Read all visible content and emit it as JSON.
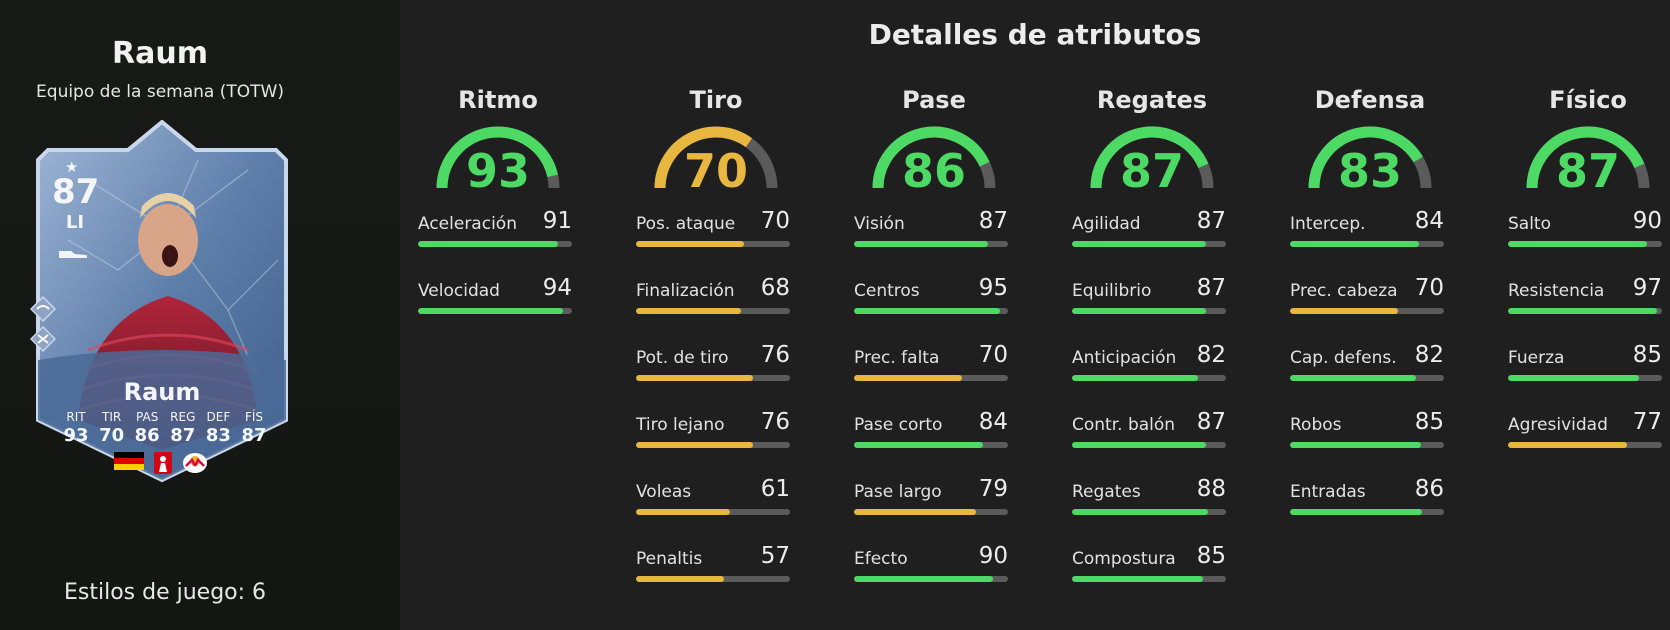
{
  "player": {
    "name": "Raum",
    "card_type": "Equipo de la semana (TOTW)",
    "playstyles_label": "Estilos de juego: 6"
  },
  "card": {
    "rating": "87",
    "position": "LI",
    "name": "Raum",
    "stats": [
      {
        "label": "RIT",
        "value": "93"
      },
      {
        "label": "TIR",
        "value": "70"
      },
      {
        "label": "PAS",
        "value": "86"
      },
      {
        "label": "REG",
        "value": "87"
      },
      {
        "label": "DEF",
        "value": "83"
      },
      {
        "label": "FÍS",
        "value": "87"
      }
    ],
    "flags": [
      "germany-flag",
      "bundesliga-badge",
      "rb-leipzig-badge"
    ]
  },
  "details": {
    "title": "Detalles de atributos",
    "colors": {
      "high": "#4cd964",
      "mid": "#e8b73f",
      "track": "#5b5b5b"
    },
    "categories": [
      {
        "name": "Ritmo",
        "value": 93,
        "stats": [
          {
            "label": "Aceleración",
            "value": 91
          },
          {
            "label": "Velocidad",
            "value": 94
          }
        ]
      },
      {
        "name": "Tiro",
        "value": 70,
        "stats": [
          {
            "label": "Pos. ataque",
            "value": 70
          },
          {
            "label": "Finalización",
            "value": 68
          },
          {
            "label": "Pot. de tiro",
            "value": 76
          },
          {
            "label": "Tiro lejano",
            "value": 76
          },
          {
            "label": "Voleas",
            "value": 61
          },
          {
            "label": "Penaltis",
            "value": 57
          }
        ]
      },
      {
        "name": "Pase",
        "value": 86,
        "stats": [
          {
            "label": "Visión",
            "value": 87
          },
          {
            "label": "Centros",
            "value": 95
          },
          {
            "label": "Prec. falta",
            "value": 70
          },
          {
            "label": "Pase corto",
            "value": 84
          },
          {
            "label": "Pase largo",
            "value": 79
          },
          {
            "label": "Efecto",
            "value": 90
          }
        ]
      },
      {
        "name": "Regates",
        "value": 87,
        "stats": [
          {
            "label": "Agilidad",
            "value": 87
          },
          {
            "label": "Equilibrio",
            "value": 87
          },
          {
            "label": "Anticipación",
            "value": 82
          },
          {
            "label": "Contr. balón",
            "value": 87
          },
          {
            "label": "Regates",
            "value": 88
          },
          {
            "label": "Compostura",
            "value": 85
          }
        ]
      },
      {
        "name": "Defensa",
        "value": 83,
        "stats": [
          {
            "label": "Intercep.",
            "value": 84
          },
          {
            "label": "Prec. cabeza",
            "value": 70
          },
          {
            "label": "Cap. defens.",
            "value": 82
          },
          {
            "label": "Robos",
            "value": 85
          },
          {
            "label": "Entradas",
            "value": 86
          }
        ]
      },
      {
        "name": "Físico",
        "value": 87,
        "stats": [
          {
            "label": "Salto",
            "value": 90
          },
          {
            "label": "Resistencia",
            "value": 97
          },
          {
            "label": "Fuerza",
            "value": 85
          },
          {
            "label": "Agresividad",
            "value": 77
          }
        ]
      }
    ]
  }
}
